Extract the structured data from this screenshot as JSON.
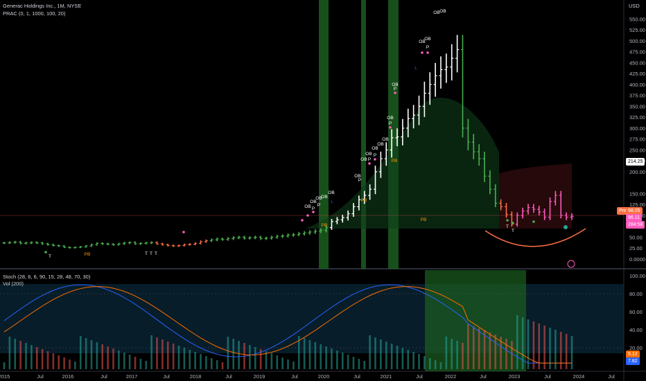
{
  "header": {
    "title": "Generac Holdings Inc., 1M, NYSE",
    "indicator1": "PRAC (0, 1, 1000, 100, 20)",
    "indicator2": "Stoch (28, 6, 6, 90, 15, 28, 48, 70, 30)",
    "indicator3": "Vol (200)",
    "currency": "USD"
  },
  "price_axis": [
    "550.00",
    "525.00",
    "500.00",
    "475.00",
    "450.00",
    "425.00",
    "400.00",
    "375.00",
    "350.00",
    "325.00",
    "300.00",
    "275.00",
    "250.00",
    "225.00",
    "200.00",
    "150.00",
    "125.00",
    "100.00",
    "75.00",
    "50.00",
    "25.00",
    "0.0000"
  ],
  "stoch_axis": [
    "100.00",
    "80.00",
    "60.00",
    "40.00",
    "20.00"
  ],
  "price_tags": {
    "current": "214.25",
    "prev_label": "Prev",
    "prev": "98.05",
    "last": "96.11",
    "countdown": "284:58",
    "stoch1": "5.12",
    "stoch2": "7.82"
  },
  "time_axis": [
    "2015",
    "Jul",
    "2016",
    "Jul",
    "2017",
    "Jul",
    "2018",
    "Jul",
    "2019",
    "Jul",
    "2020",
    "Jul",
    "2021",
    "Jul",
    "2022",
    "Jul",
    "2023",
    "Jul",
    "2024",
    "Jul"
  ],
  "signal_labels": {
    "overbought": "OB",
    "pullback": "PB",
    "peak": "P",
    "trough": "T",
    "low": "L"
  },
  "chart_data": {
    "type": "bar",
    "interval": "1M",
    "x_start": "2015-01",
    "closes": [
      37,
      38,
      39,
      36,
      37,
      38,
      37,
      35,
      33,
      31,
      30,
      27,
      26,
      27,
      28,
      30,
      33,
      36,
      35,
      34,
      33,
      35,
      37,
      38,
      35,
      36,
      37,
      38,
      35,
      33,
      31,
      30,
      31,
      33,
      34,
      36,
      40,
      42,
      44,
      46,
      45,
      47,
      49,
      50,
      48,
      49,
      50,
      47,
      48,
      50,
      52,
      53,
      55,
      56,
      58,
      60,
      62,
      64,
      66,
      72,
      86,
      90,
      95,
      104,
      120,
      136,
      146,
      160,
      200,
      230,
      250,
      278,
      280,
      300,
      322,
      330,
      350,
      380,
      400,
      420,
      434,
      440,
      460,
      480,
      300,
      268,
      246,
      230,
      190,
      160,
      128,
      120,
      102,
      80,
      100,
      110,
      118,
      114,
      108,
      96,
      132,
      146,
      100,
      96,
      98
    ],
    "colors": {
      "up": "#ffffff",
      "down_green": "#4caf50",
      "down_red": "#ef5350",
      "pink": "#ff5bbd",
      "orange": "#ff7043"
    },
    "yrange": [
      0,
      565
    ],
    "stoch": {
      "k_color": "#2962ff",
      "d_color": "#ff6d00",
      "ylim": [
        0,
        100
      ]
    }
  }
}
